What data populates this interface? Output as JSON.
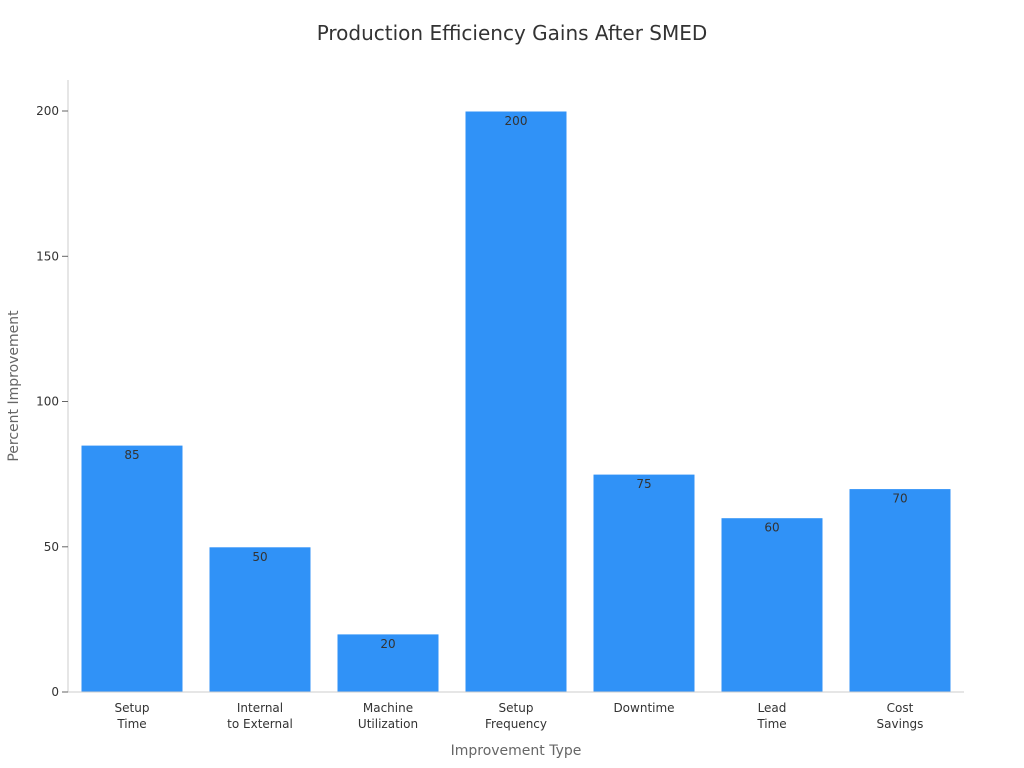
{
  "chart_data": {
    "type": "bar",
    "title": "Production Efficiency Gains After SMED",
    "xlabel": "Improvement Type",
    "ylabel": "Percent Improvement",
    "categories": [
      [
        "Setup",
        "Time"
      ],
      [
        "Internal",
        "to External"
      ],
      [
        "Machine",
        "Utilization"
      ],
      [
        "Setup",
        "Frequency"
      ],
      [
        "Downtime"
      ],
      [
        "Lead",
        "Time"
      ],
      [
        "Cost",
        "Savings"
      ]
    ],
    "values": [
      85,
      50,
      20,
      200,
      75,
      60,
      70
    ],
    "ylim": [
      0,
      210
    ],
    "yticks": [
      0,
      50,
      100,
      150,
      200
    ],
    "bar_color": "#3092f7",
    "grid": false,
    "legend": "none"
  }
}
